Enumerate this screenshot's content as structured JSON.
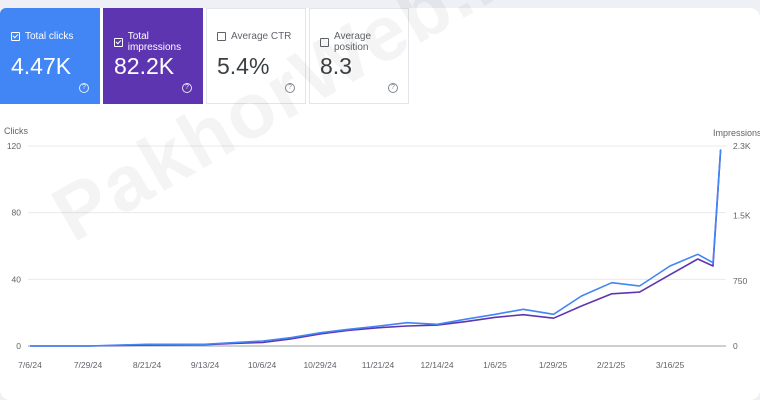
{
  "metrics": [
    {
      "id": "clicks",
      "label": "Total clicks",
      "value": "4.47K",
      "checked": true,
      "color": "#4285f4"
    },
    {
      "id": "impressions",
      "label": "Total impressions",
      "value": "82.2K",
      "checked": true,
      "color": "#5e35b1"
    },
    {
      "id": "ctr",
      "label": "Average CTR",
      "value": "5.4%",
      "checked": false
    },
    {
      "id": "position",
      "label": "Average position",
      "value": "8.3",
      "checked": false
    }
  ],
  "watermark": "PakhorWeb.ir",
  "chart_data": {
    "type": "line",
    "left_axis_label": "Clicks",
    "right_axis_label": "Impressions",
    "y_left_ticks": [
      "0",
      "40",
      "80",
      "120"
    ],
    "y_left_range": [
      0,
      120
    ],
    "y_right_ticks": [
      "0",
      "750",
      "1.5K",
      "2.3K"
    ],
    "y_right_range": [
      0,
      2300
    ],
    "x_ticks": [
      "7/6/24",
      "7/29/24",
      "8/21/24",
      "9/13/24",
      "10/6/24",
      "10/29/24",
      "11/21/24",
      "12/14/24",
      "1/6/25",
      "1/29/25",
      "2/21/25",
      "3/16/25"
    ],
    "grid": true,
    "series": [
      {
        "name": "Clicks",
        "color": "#4285f4",
        "axis": "left",
        "x": [
          "7/6/24",
          "7/29/24",
          "8/21/24",
          "9/13/24",
          "9/24/24",
          "10/6/24",
          "10/17/24",
          "10/29/24",
          "11/9/24",
          "11/21/24",
          "12/2/24",
          "12/14/24",
          "12/25/24",
          "1/6/25",
          "1/17/25",
          "1/29/25",
          "2/9/25",
          "2/21/25",
          "3/4/25",
          "3/16/25",
          "3/27/25",
          "4/2/25",
          "4/5/25"
        ],
        "values": [
          0,
          0,
          1,
          1,
          2,
          3,
          5,
          8,
          10,
          12,
          14,
          13,
          16,
          19,
          22,
          19,
          30,
          38,
          36,
          48,
          55,
          50,
          118
        ]
      },
      {
        "name": "Impressions",
        "color": "#5e35b1",
        "axis": "right",
        "x": [
          "7/6/24",
          "7/29/24",
          "8/21/24",
          "9/13/24",
          "9/24/24",
          "10/6/24",
          "10/17/24",
          "10/29/24",
          "11/9/24",
          "11/21/24",
          "12/2/24",
          "12/14/24",
          "12/25/24",
          "1/6/25",
          "1/17/25",
          "1/29/25",
          "2/9/25",
          "2/21/25",
          "3/4/25",
          "3/16/25",
          "3/27/25",
          "4/2/25",
          "4/5/25"
        ],
        "values": [
          0,
          0,
          10,
          15,
          30,
          40,
          80,
          140,
          180,
          210,
          230,
          240,
          280,
          330,
          360,
          320,
          460,
          600,
          620,
          820,
          1000,
          920,
          2250
        ]
      }
    ]
  }
}
